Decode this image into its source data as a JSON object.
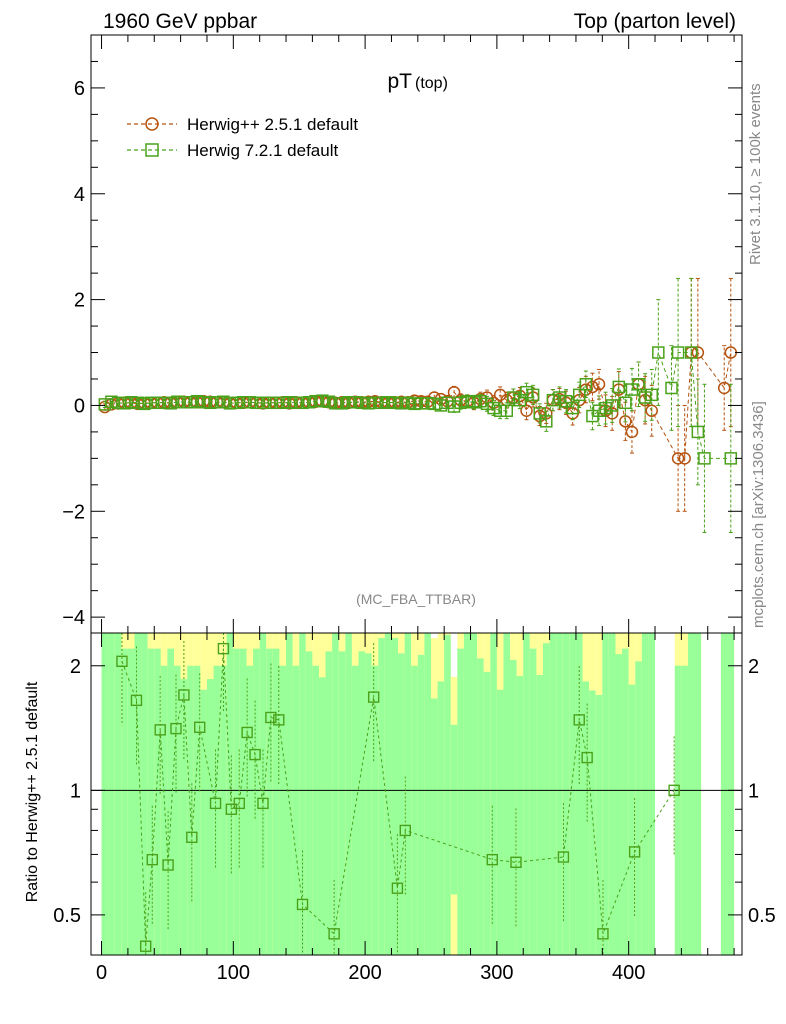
{
  "header": {
    "left": "1960 GeV ppbar",
    "right": "Top (parton level)"
  },
  "side": {
    "rivet": "Rivet 3.1.10, ≥ 100k events",
    "mcplots": "mcplots.cern.ch [arXiv:1306.3436]"
  },
  "colors": {
    "herwigpp": "#b5520f",
    "herwig7": "#4aa21b",
    "band_inner": "#99ff99",
    "band_outer": "#ffff99"
  },
  "chart_data": [
    {
      "type": "line",
      "title": "pT",
      "title_sub": "(top)",
      "watermark": "(MC_FBA_TTBAR)",
      "xlabel": "",
      "ylabel": "",
      "xlim": [
        -8,
        486
      ],
      "ylim": [
        -4.3,
        7.0
      ],
      "yticks": [
        -4,
        -2,
        0,
        2,
        4,
        6
      ],
      "ytick_labels": [
        "−4",
        "−2",
        "0",
        "2",
        "4",
        "6"
      ],
      "legend": [
        "Herwig++ 2.5.1 default",
        "Herwig 7.2.1 default"
      ],
      "legend_position": "top-left",
      "series": [
        {
          "name": "Herwig++ 2.5.1 default",
          "marker": "circle",
          "x": [
            2.5,
            7.5,
            12.5,
            17.5,
            22.5,
            27.5,
            32.5,
            37.5,
            42.5,
            47.5,
            52.5,
            57.5,
            62.5,
            67.5,
            72.5,
            77.5,
            82.5,
            87.5,
            92.5,
            97.5,
            102.5,
            107.5,
            112.5,
            117.5,
            122.5,
            127.5,
            132.5,
            137.5,
            142.5,
            147.5,
            152.5,
            157.5,
            162.5,
            167.5,
            172.5,
            177.5,
            182.5,
            187.5,
            192.5,
            197.5,
            202.5,
            207.5,
            212.5,
            217.5,
            222.5,
            227.5,
            232.5,
            237.5,
            242.5,
            247.5,
            252.5,
            257.5,
            262.5,
            267.5,
            272.5,
            277.5,
            282.5,
            287.5,
            292.5,
            297.5,
            302.5,
            307.5,
            312.5,
            317.5,
            322.5,
            327.5,
            332.5,
            337.5,
            342.5,
            347.5,
            352.5,
            357.5,
            362.5,
            367.5,
            372.5,
            377.5,
            382.5,
            387.5,
            392.5,
            397.5,
            402.5,
            407.5,
            412.5,
            417.5,
            422.5,
            427.5,
            432.5,
            437.5,
            442.5,
            447.5,
            452.5,
            457.5,
            462.5,
            467.5,
            472.5,
            477.5
          ],
          "y": [
            -0.03,
            0.02,
            0.04,
            0.05,
            0.05,
            0.03,
            0.04,
            0.05,
            0.05,
            0.06,
            0.05,
            0.06,
            0.07,
            0.06,
            0.06,
            0.08,
            0.07,
            0.06,
            0.06,
            0.04,
            0.05,
            0.05,
            0.06,
            0.05,
            0.04,
            0.05,
            0.05,
            0.06,
            0.04,
            0.06,
            0.05,
            0.06,
            0.07,
            0.08,
            0.06,
            0.05,
            0.06,
            0.05,
            0.07,
            0.06,
            0.07,
            0.08,
            0.06,
            0.05,
            0.06,
            0.07,
            0.06,
            0.09,
            0.08,
            0.07,
            0.15,
            0.12,
            0.08,
            0.25,
            0.1,
            0.08,
            0.05,
            0.12,
            0.15,
            0.05,
            0.2,
            0.1,
            0.15,
            0.18,
            -0.1,
            0.15,
            -0.2,
            -0.15,
            0.1,
            0.12,
            0.05,
            -0.15,
            0.1,
            0.3,
            0.35,
            0.4,
            -0.1,
            -0.15,
            0.3,
            -0.3,
            -0.5,
            0.4,
            0.1,
            -0.1,
            null,
            null,
            null,
            -1.0,
            -1.0,
            1.0,
            1.0,
            null,
            null,
            null,
            0.33,
            1.0
          ],
          "err": [
            0.06,
            0.06,
            0.06,
            0.06,
            0.06,
            0.06,
            0.06,
            0.06,
            0.06,
            0.06,
            0.06,
            0.06,
            0.06,
            0.06,
            0.06,
            0.06,
            0.06,
            0.06,
            0.06,
            0.06,
            0.06,
            0.06,
            0.06,
            0.06,
            0.06,
            0.06,
            0.06,
            0.06,
            0.06,
            0.06,
            0.07,
            0.07,
            0.07,
            0.07,
            0.07,
            0.07,
            0.07,
            0.07,
            0.07,
            0.07,
            0.08,
            0.08,
            0.08,
            0.08,
            0.08,
            0.08,
            0.09,
            0.09,
            0.09,
            0.1,
            0.1,
            0.1,
            0.11,
            0.11,
            0.12,
            0.12,
            0.13,
            0.13,
            0.14,
            0.14,
            0.15,
            0.15,
            0.16,
            0.16,
            0.17,
            0.18,
            0.18,
            0.19,
            0.2,
            0.2,
            0.22,
            0.22,
            0.24,
            0.25,
            0.26,
            0.28,
            0.3,
            0.32,
            0.34,
            0.36,
            0.4,
            0.42,
            0.45,
            0.48,
            0,
            0,
            0,
            1.0,
            1.0,
            1.4,
            1.4,
            0,
            0,
            0,
            0.8,
            1.4
          ]
        },
        {
          "name": "Herwig 7.2.1 default",
          "marker": "square",
          "x": [
            2.5,
            7.5,
            12.5,
            17.5,
            22.5,
            27.5,
            32.5,
            37.5,
            42.5,
            47.5,
            52.5,
            57.5,
            62.5,
            67.5,
            72.5,
            77.5,
            82.5,
            87.5,
            92.5,
            97.5,
            102.5,
            107.5,
            112.5,
            117.5,
            122.5,
            127.5,
            132.5,
            137.5,
            142.5,
            147.5,
            152.5,
            157.5,
            162.5,
            167.5,
            172.5,
            177.5,
            182.5,
            187.5,
            192.5,
            197.5,
            202.5,
            207.5,
            212.5,
            217.5,
            222.5,
            227.5,
            232.5,
            237.5,
            242.5,
            247.5,
            252.5,
            257.5,
            262.5,
            267.5,
            272.5,
            277.5,
            282.5,
            287.5,
            292.5,
            297.5,
            302.5,
            307.5,
            312.5,
            317.5,
            322.5,
            327.5,
            332.5,
            337.5,
            342.5,
            347.5,
            352.5,
            357.5,
            362.5,
            367.5,
            372.5,
            377.5,
            382.5,
            387.5,
            392.5,
            397.5,
            402.5,
            407.5,
            412.5,
            417.5,
            422.5,
            427.5,
            432.5,
            437.5,
            442.5,
            447.5,
            452.5,
            457.5,
            462.5,
            467.5,
            472.5,
            477.5
          ],
          "y": [
            0.02,
            0.07,
            0.05,
            0.04,
            0.06,
            0.05,
            0.03,
            0.05,
            0.05,
            0.05,
            0.04,
            0.07,
            0.06,
            0.06,
            0.08,
            0.06,
            0.05,
            0.06,
            0.07,
            0.04,
            0.05,
            0.06,
            0.06,
            0.05,
            0.05,
            0.05,
            0.05,
            0.05,
            0.06,
            0.05,
            0.05,
            0.06,
            0.08,
            0.09,
            0.07,
            0.04,
            0.04,
            0.06,
            0.06,
            0.05,
            0.04,
            0.05,
            0.05,
            0.06,
            0.05,
            0.04,
            0.05,
            0.03,
            0.04,
            0.04,
            0.03,
            0.0,
            0.05,
            -0.02,
            0.05,
            0.08,
            0.06,
            0.08,
            0.03,
            -0.05,
            -0.1,
            -0.1,
            0.15,
            0.1,
            0.25,
            0.2,
            -0.15,
            -0.3,
            0.1,
            0.15,
            0.08,
            -0.05,
            0.2,
            0.4,
            -0.2,
            -0.1,
            -0.05,
            0.0,
            0.35,
            0.05,
            0.3,
            0.4,
            0.15,
            0.2,
            1.0,
            null,
            0.33,
            1.0,
            null,
            1.0,
            -0.5,
            -1.0,
            null,
            null,
            null,
            -1.0
          ],
          "err": [
            0.06,
            0.06,
            0.06,
            0.06,
            0.06,
            0.06,
            0.06,
            0.06,
            0.06,
            0.06,
            0.06,
            0.06,
            0.06,
            0.06,
            0.06,
            0.06,
            0.06,
            0.06,
            0.06,
            0.06,
            0.06,
            0.06,
            0.06,
            0.06,
            0.06,
            0.06,
            0.06,
            0.06,
            0.06,
            0.06,
            0.07,
            0.07,
            0.07,
            0.07,
            0.07,
            0.07,
            0.07,
            0.07,
            0.07,
            0.07,
            0.08,
            0.08,
            0.08,
            0.08,
            0.08,
            0.08,
            0.09,
            0.09,
            0.09,
            0.1,
            0.1,
            0.1,
            0.11,
            0.11,
            0.12,
            0.12,
            0.13,
            0.13,
            0.14,
            0.14,
            0.15,
            0.15,
            0.16,
            0.16,
            0.17,
            0.18,
            0.18,
            0.19,
            0.2,
            0.2,
            0.22,
            0.22,
            0.24,
            0.25,
            0.26,
            0.28,
            0.3,
            0.32,
            0.34,
            0.36,
            0.4,
            0.42,
            0.45,
            0.48,
            1.0,
            0,
            0.8,
            1.4,
            0,
            1.4,
            1.0,
            1.4,
            0,
            0,
            0,
            1.4
          ]
        }
      ]
    },
    {
      "type": "line",
      "title": "",
      "xlabel": "",
      "ylabel": "Ratio to Herwig++ 2.5.1 default",
      "xlim": [
        -8,
        486
      ],
      "ylim": [
        0.4,
        2.4
      ],
      "yticks": [
        0.5,
        1,
        2
      ],
      "ytick_labels": [
        "0.5",
        "1",
        "2"
      ],
      "xticks": [
        0,
        100,
        200,
        300,
        400
      ],
      "xtick_labels": [
        "0",
        "100",
        "200",
        "300",
        "400"
      ],
      "reference_line": 1,
      "series": [
        {
          "name": "Herwig 7.2.1 default",
          "marker": "square",
          "x": [
            15.5,
            26.5,
            33.5,
            38.5,
            44.5,
            50.5,
            56.5,
            62.5,
            68.5,
            74.5,
            86.5,
            92.5,
            98.5,
            104.5,
            110.5,
            116.5,
            122.5,
            128.5,
            134.5,
            152.5,
            176.5,
            206.5,
            224.5,
            230.5,
            296.5,
            314.5,
            350.5,
            362.5,
            368.5,
            380.5,
            404.5,
            434.5
          ],
          "y": [
            2.05,
            1.65,
            0.42,
            0.68,
            1.4,
            0.66,
            1.41,
            1.7,
            0.77,
            1.42,
            0.93,
            2.2,
            0.9,
            0.93,
            1.38,
            1.22,
            0.93,
            1.5,
            1.48,
            0.53,
            0.45,
            1.68,
            0.58,
            0.8,
            0.68,
            0.67,
            0.69,
            1.48,
            1.2,
            0.45,
            0.71,
            1.0
          ]
        }
      ]
    }
  ]
}
